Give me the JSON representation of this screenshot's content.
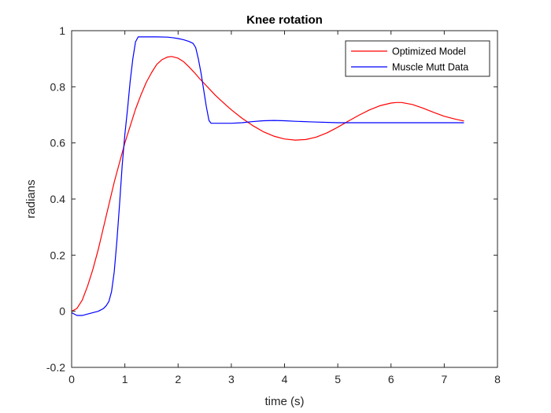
{
  "chart_data": {
    "type": "line",
    "title": "Knee rotation",
    "xlabel": "time (s)",
    "ylabel": "radians",
    "xlim": [
      0,
      8
    ],
    "ylim": [
      -0.2,
      1
    ],
    "xticks": [
      0,
      1,
      2,
      3,
      4,
      5,
      6,
      7,
      8
    ],
    "xtick_labels": [
      "0",
      "1",
      "2",
      "3",
      "4",
      "5",
      "6",
      "7",
      "8"
    ],
    "yticks": [
      -0.2,
      0,
      0.2,
      0.4,
      0.6,
      0.8,
      1
    ],
    "ytick_labels": [
      "-0.2",
      "0",
      "0.2",
      "0.4",
      "0.6",
      "0.8",
      "1"
    ],
    "grid": false,
    "legend_position": "top-right",
    "series": [
      {
        "name": "Optimized Model",
        "color": "#ff0000",
        "points": [
          [
            0.0,
            0.0
          ],
          [
            0.1,
            0.01
          ],
          [
            0.2,
            0.04
          ],
          [
            0.3,
            0.09
          ],
          [
            0.4,
            0.15
          ],
          [
            0.5,
            0.22
          ],
          [
            0.6,
            0.3
          ],
          [
            0.7,
            0.38
          ],
          [
            0.8,
            0.46
          ],
          [
            0.9,
            0.53
          ],
          [
            1.0,
            0.6
          ],
          [
            1.1,
            0.66
          ],
          [
            1.2,
            0.72
          ],
          [
            1.3,
            0.77
          ],
          [
            1.4,
            0.815
          ],
          [
            1.5,
            0.85
          ],
          [
            1.6,
            0.88
          ],
          [
            1.7,
            0.897
          ],
          [
            1.8,
            0.906
          ],
          [
            1.88,
            0.908
          ],
          [
            2.0,
            0.902
          ],
          [
            2.1,
            0.89
          ],
          [
            2.2,
            0.872
          ],
          [
            2.3,
            0.852
          ],
          [
            2.4,
            0.83
          ],
          [
            2.5,
            0.81
          ],
          [
            2.6,
            0.79
          ],
          [
            2.7,
            0.77
          ],
          [
            2.8,
            0.752
          ],
          [
            2.9,
            0.735
          ],
          [
            3.0,
            0.718
          ],
          [
            3.2,
            0.688
          ],
          [
            3.4,
            0.662
          ],
          [
            3.6,
            0.64
          ],
          [
            3.8,
            0.624
          ],
          [
            4.0,
            0.614
          ],
          [
            4.2,
            0.61
          ],
          [
            4.4,
            0.612
          ],
          [
            4.6,
            0.621
          ],
          [
            4.8,
            0.636
          ],
          [
            5.0,
            0.656
          ],
          [
            5.2,
            0.678
          ],
          [
            5.4,
            0.699
          ],
          [
            5.6,
            0.718
          ],
          [
            5.8,
            0.733
          ],
          [
            6.0,
            0.742
          ],
          [
            6.1,
            0.744
          ],
          [
            6.2,
            0.744
          ],
          [
            6.4,
            0.737
          ],
          [
            6.6,
            0.724
          ],
          [
            6.8,
            0.709
          ],
          [
            7.0,
            0.695
          ],
          [
            7.2,
            0.685
          ],
          [
            7.37,
            0.678
          ]
        ]
      },
      {
        "name": "Muscle Mutt Data",
        "color": "#0000ff",
        "points": [
          [
            0.0,
            -0.005
          ],
          [
            0.05,
            -0.01
          ],
          [
            0.1,
            -0.015
          ],
          [
            0.2,
            -0.015
          ],
          [
            0.3,
            -0.01
          ],
          [
            0.4,
            -0.005
          ],
          [
            0.5,
            0.0
          ],
          [
            0.6,
            0.01
          ],
          [
            0.65,
            0.02
          ],
          [
            0.7,
            0.035
          ],
          [
            0.75,
            0.07
          ],
          [
            0.8,
            0.14
          ],
          [
            0.85,
            0.25
          ],
          [
            0.9,
            0.38
          ],
          [
            0.95,
            0.52
          ],
          [
            1.0,
            0.63
          ],
          [
            1.05,
            0.72
          ],
          [
            1.1,
            0.82
          ],
          [
            1.15,
            0.9
          ],
          [
            1.2,
            0.96
          ],
          [
            1.25,
            0.978
          ],
          [
            1.4,
            0.978
          ],
          [
            1.6,
            0.978
          ],
          [
            1.8,
            0.977
          ],
          [
            1.9,
            0.975
          ],
          [
            2.0,
            0.972
          ],
          [
            2.1,
            0.968
          ],
          [
            2.2,
            0.962
          ],
          [
            2.28,
            0.955
          ],
          [
            2.33,
            0.94
          ],
          [
            2.38,
            0.9
          ],
          [
            2.43,
            0.85
          ],
          [
            2.48,
            0.79
          ],
          [
            2.53,
            0.73
          ],
          [
            2.58,
            0.68
          ],
          [
            2.62,
            0.67
          ],
          [
            2.8,
            0.67
          ],
          [
            3.0,
            0.67
          ],
          [
            3.2,
            0.672
          ],
          [
            3.4,
            0.676
          ],
          [
            3.6,
            0.679
          ],
          [
            3.8,
            0.68
          ],
          [
            4.0,
            0.679
          ],
          [
            4.2,
            0.677
          ],
          [
            4.5,
            0.675
          ],
          [
            5.0,
            0.672
          ],
          [
            6.0,
            0.672
          ],
          [
            7.0,
            0.672
          ],
          [
            7.37,
            0.672
          ]
        ]
      }
    ]
  }
}
